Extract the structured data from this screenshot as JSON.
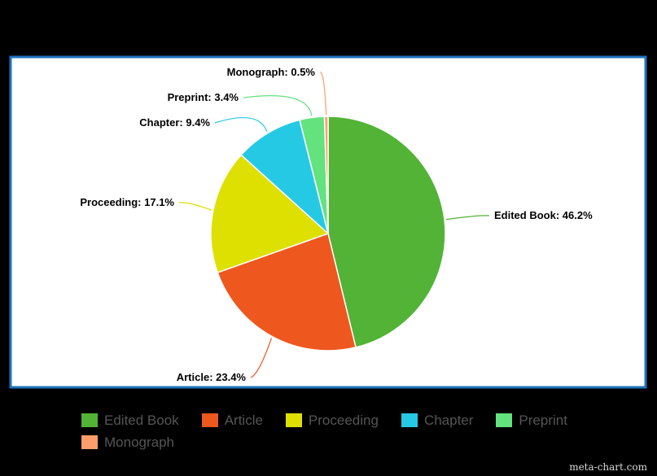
{
  "chart_data": {
    "type": "pie",
    "title": "",
    "categories": [
      "Edited Book",
      "Article",
      "Proceeding",
      "Chapter",
      "Preprint",
      "Monograph"
    ],
    "values": [
      46.2,
      23.4,
      17.1,
      9.4,
      3.4,
      0.5
    ],
    "value_suffix": "%",
    "colors": [
      "#52b336",
      "#ee581f",
      "#dde000",
      "#26c9e4",
      "#63e27d",
      "#ff9e6b"
    ],
    "labels": [
      "Edited Book: 46.2%",
      "Article: 23.4%",
      "Proceeding: 17.1%",
      "Chapter: 9.4%",
      "Preprint: 3.4%",
      "Monograph: 0.5%"
    ],
    "legend_position": "bottom",
    "legend": {
      "rows": [
        [
          "Edited Book",
          "Article",
          "Proceeding",
          "Chapter",
          "Preprint"
        ],
        [
          "Monograph"
        ]
      ]
    }
  },
  "credit": "meta-chart.com"
}
